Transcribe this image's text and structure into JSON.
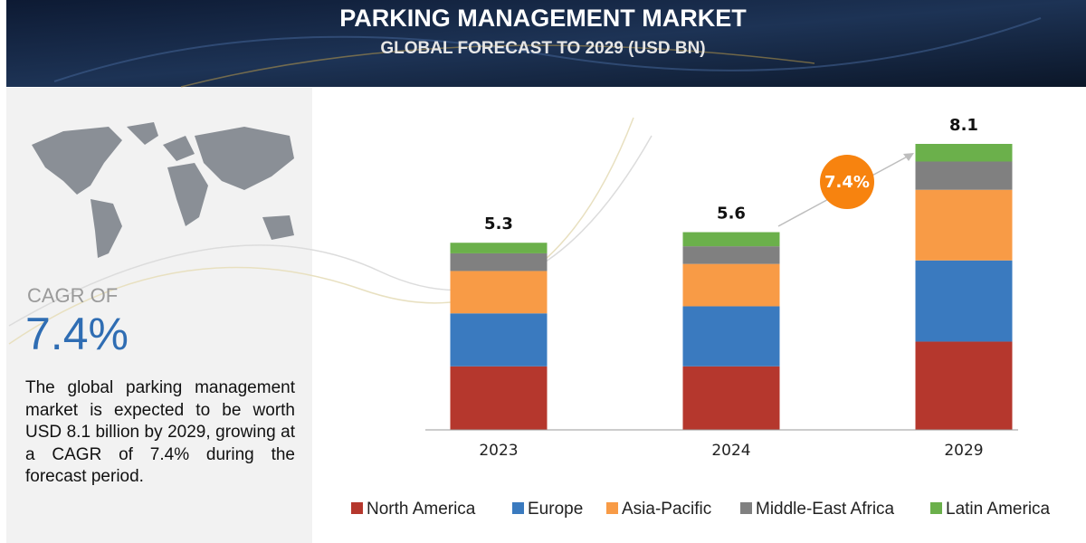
{
  "chart_data": {
    "type": "stacked_bar",
    "title": "PARKING MANAGEMENT MARKET",
    "subtitle": "GLOBAL FORECAST TO 2029 (USD BN)",
    "categories": [
      "2023",
      "2024",
      "2029"
    ],
    "series": [
      {
        "name": "North America",
        "color": "#b5372d",
        "values": [
          1.8,
          1.8,
          2.5
        ]
      },
      {
        "name": "Europe",
        "color": "#3a7abf",
        "values": [
          1.5,
          1.7,
          2.3
        ]
      },
      {
        "name": "Asia-Pacific",
        "color": "#f89b46",
        "values": [
          1.2,
          1.2,
          2.0
        ]
      },
      {
        "name": "Middle-East Africa",
        "color": "#808080",
        "values": [
          0.5,
          0.5,
          0.8
        ]
      },
      {
        "name": "Latin America",
        "color": "#6bb04b",
        "values": [
          0.3,
          0.4,
          0.5
        ]
      }
    ],
    "totals": [
      5.3,
      5.6,
      8.1
    ],
    "annotation": "7.4%",
    "cagr_label": "CAGR OF",
    "cagr_value": "7.4%",
    "description": "The global parking management market is expected to be worth USD 8.1 billion by 2029, growing at a CAGR of 7.4% during the forecast period.",
    "legend": "bottom"
  }
}
